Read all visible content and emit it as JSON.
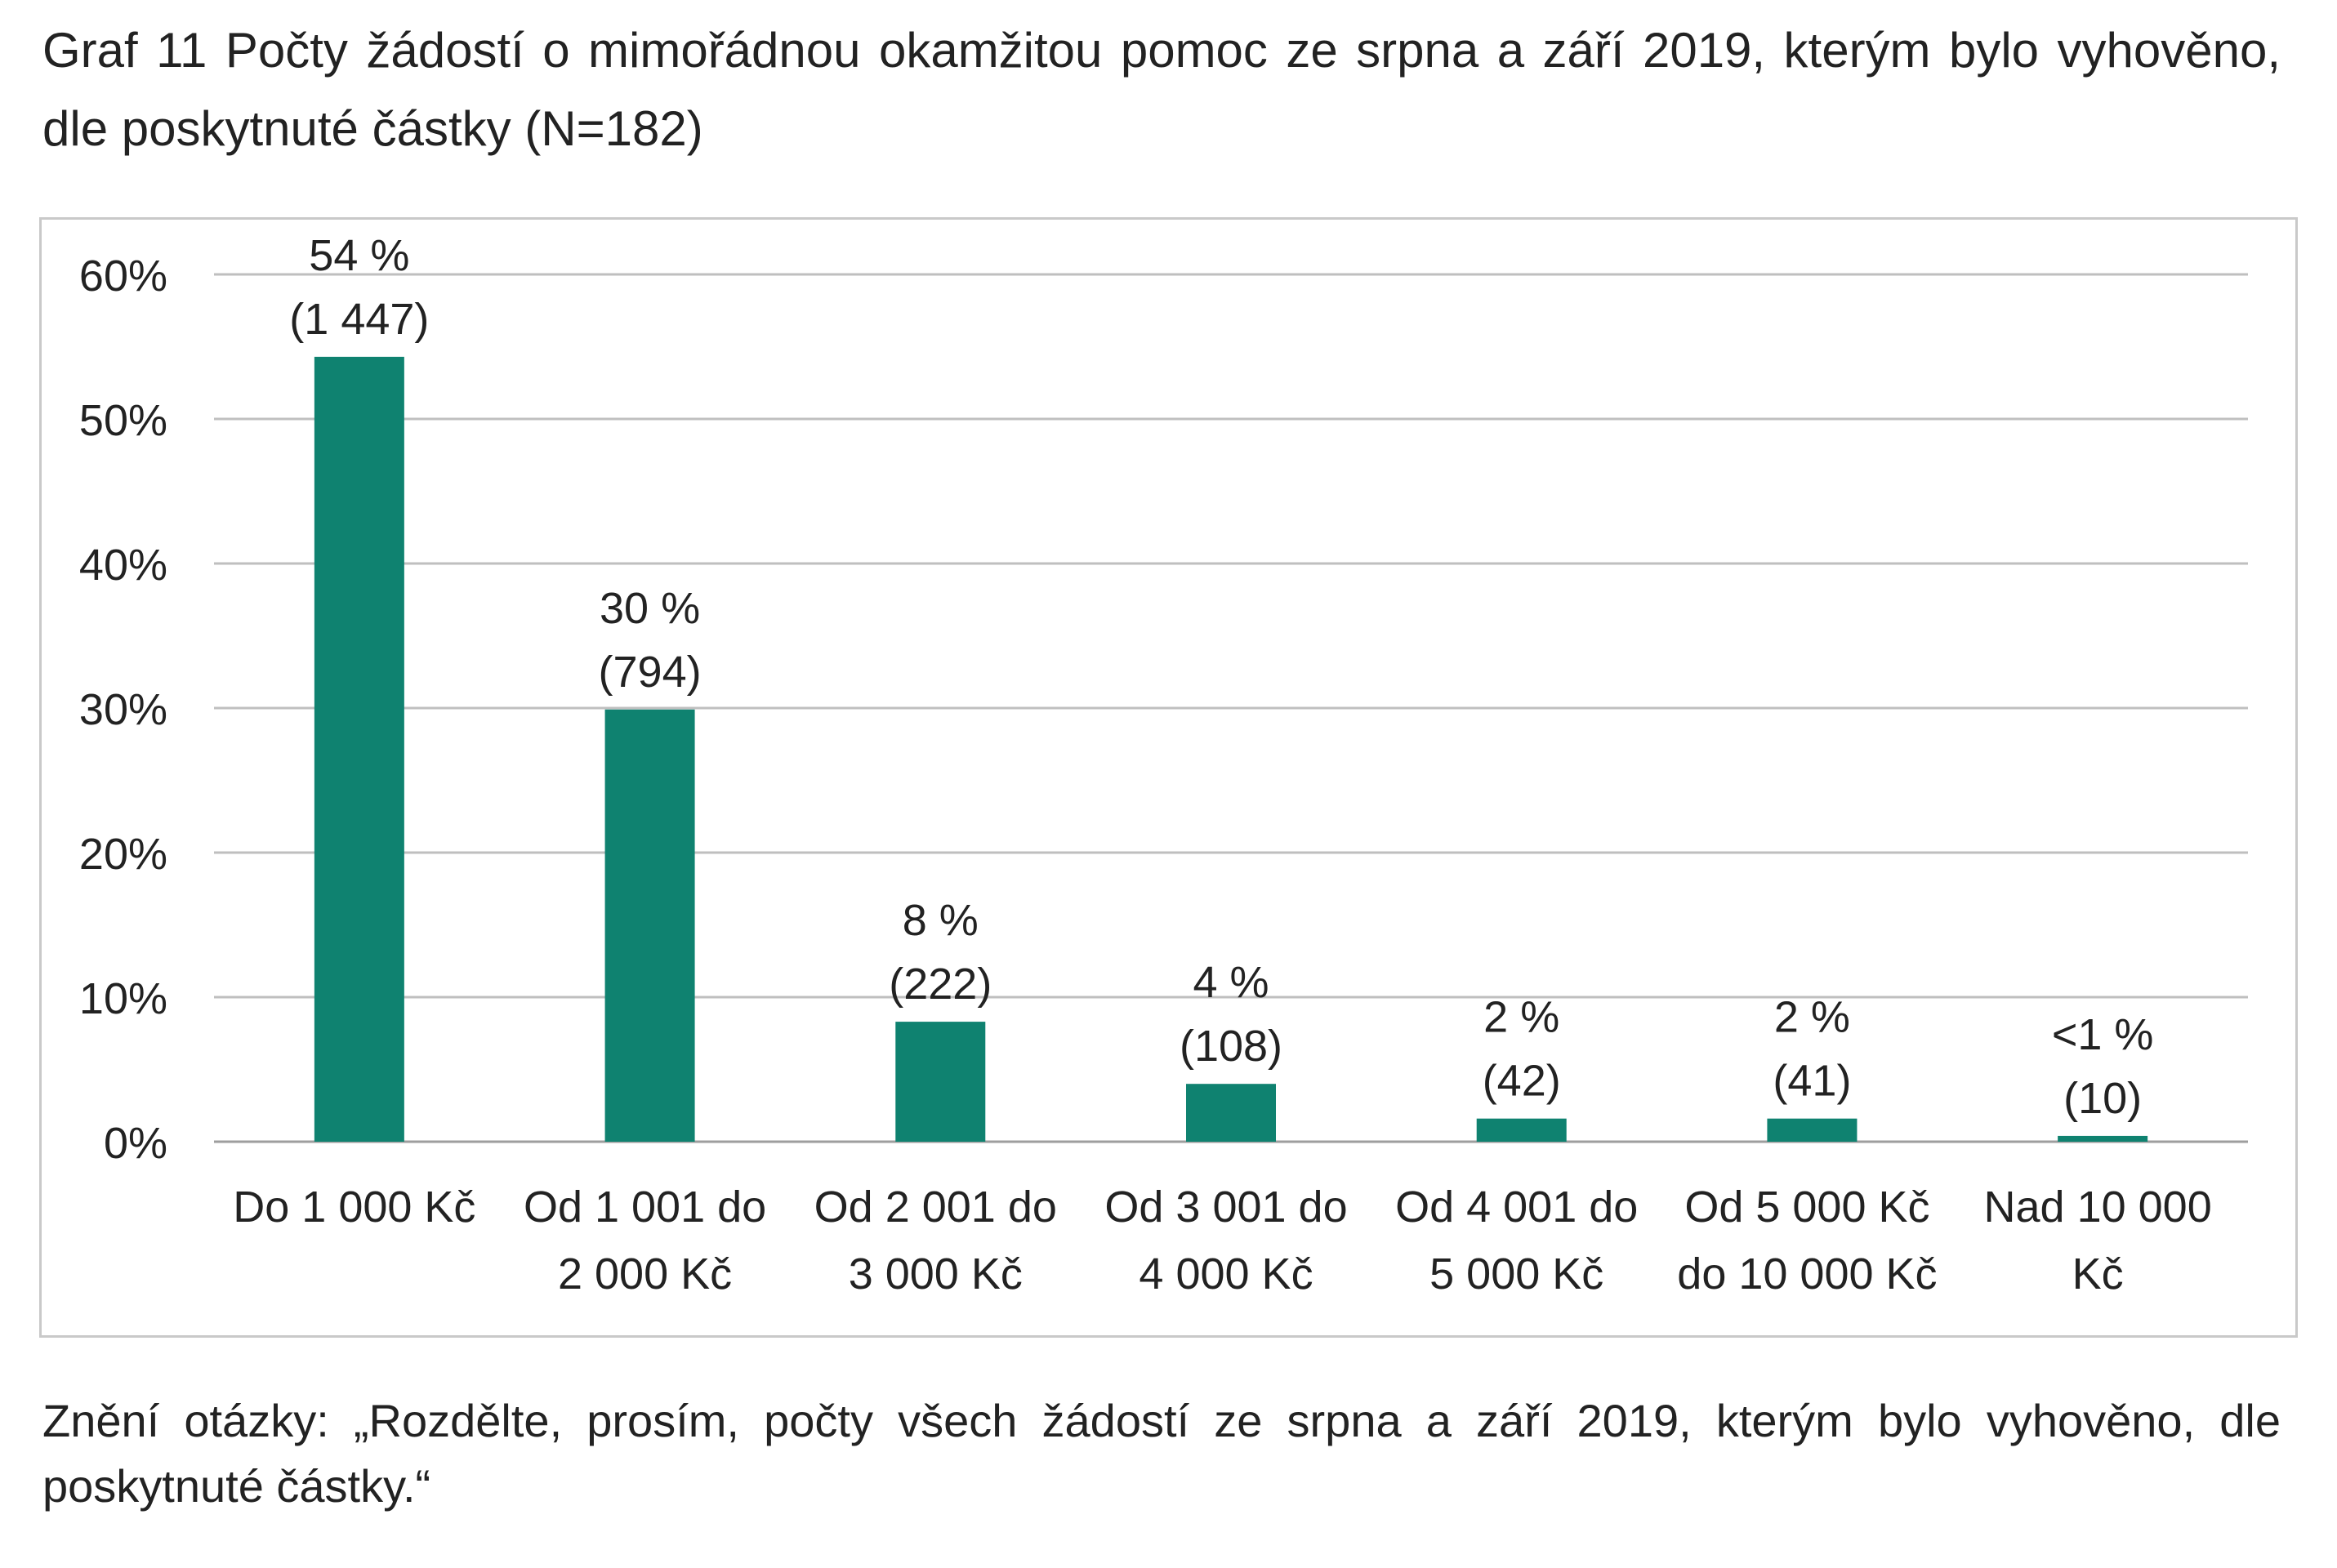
{
  "caption": "Graf 11 Počty žádostí o mimořádnou okamžitou pomoc ze srpna a září 2019, kterým bylo vyhověno, dle poskytnuté částky (N=182)",
  "note": "Znění otázky: „Rozdělte, prosím, počty všech žádostí ze srpna a září 2019, kterým bylo vyhověno, dle poskytnuté částky.“",
  "colors": {
    "bar": "#0f8270",
    "grid": "#bfbfbf",
    "axis": "#9e9e9e"
  },
  "chart_data": {
    "type": "bar",
    "title": "",
    "xlabel": "",
    "ylabel": "",
    "ylim": [
      0,
      60
    ],
    "yticks": [
      {
        "value": 0,
        "label": "0%"
      },
      {
        "value": 10,
        "label": "10%"
      },
      {
        "value": 20,
        "label": "20%"
      },
      {
        "value": 30,
        "label": "30%"
      },
      {
        "value": 40,
        "label": "40%"
      },
      {
        "value": 50,
        "label": "50%"
      },
      {
        "value": 60,
        "label": "60%"
      }
    ],
    "grid": true,
    "legend": "none",
    "categories": [
      [
        "Do 1 000 Kč"
      ],
      [
        "Od 1 001 do",
        "2 000 Kč"
      ],
      [
        "Od 2 001 do",
        "3 000 Kč"
      ],
      [
        "Od 3 001 do",
        "4 000 Kč"
      ],
      [
        "Od 4 001 do",
        "5 000 Kč"
      ],
      [
        "Od 5 000 Kč",
        "do 10 000 Kč"
      ],
      [
        "Nad 10 000",
        "Kč"
      ]
    ],
    "values": [
      54.3,
      29.9,
      8.3,
      4.0,
      1.6,
      1.6,
      0.4
    ],
    "data_labels": [
      [
        "54 %",
        "(1 447)"
      ],
      [
        "30 %",
        "(794)"
      ],
      [
        "8 %",
        "(222)"
      ],
      [
        "4 %",
        "(108)"
      ],
      [
        "2 %",
        "(42)"
      ],
      [
        "2  %",
        "(41)"
      ],
      [
        "<1 %",
        "(10)"
      ]
    ]
  }
}
